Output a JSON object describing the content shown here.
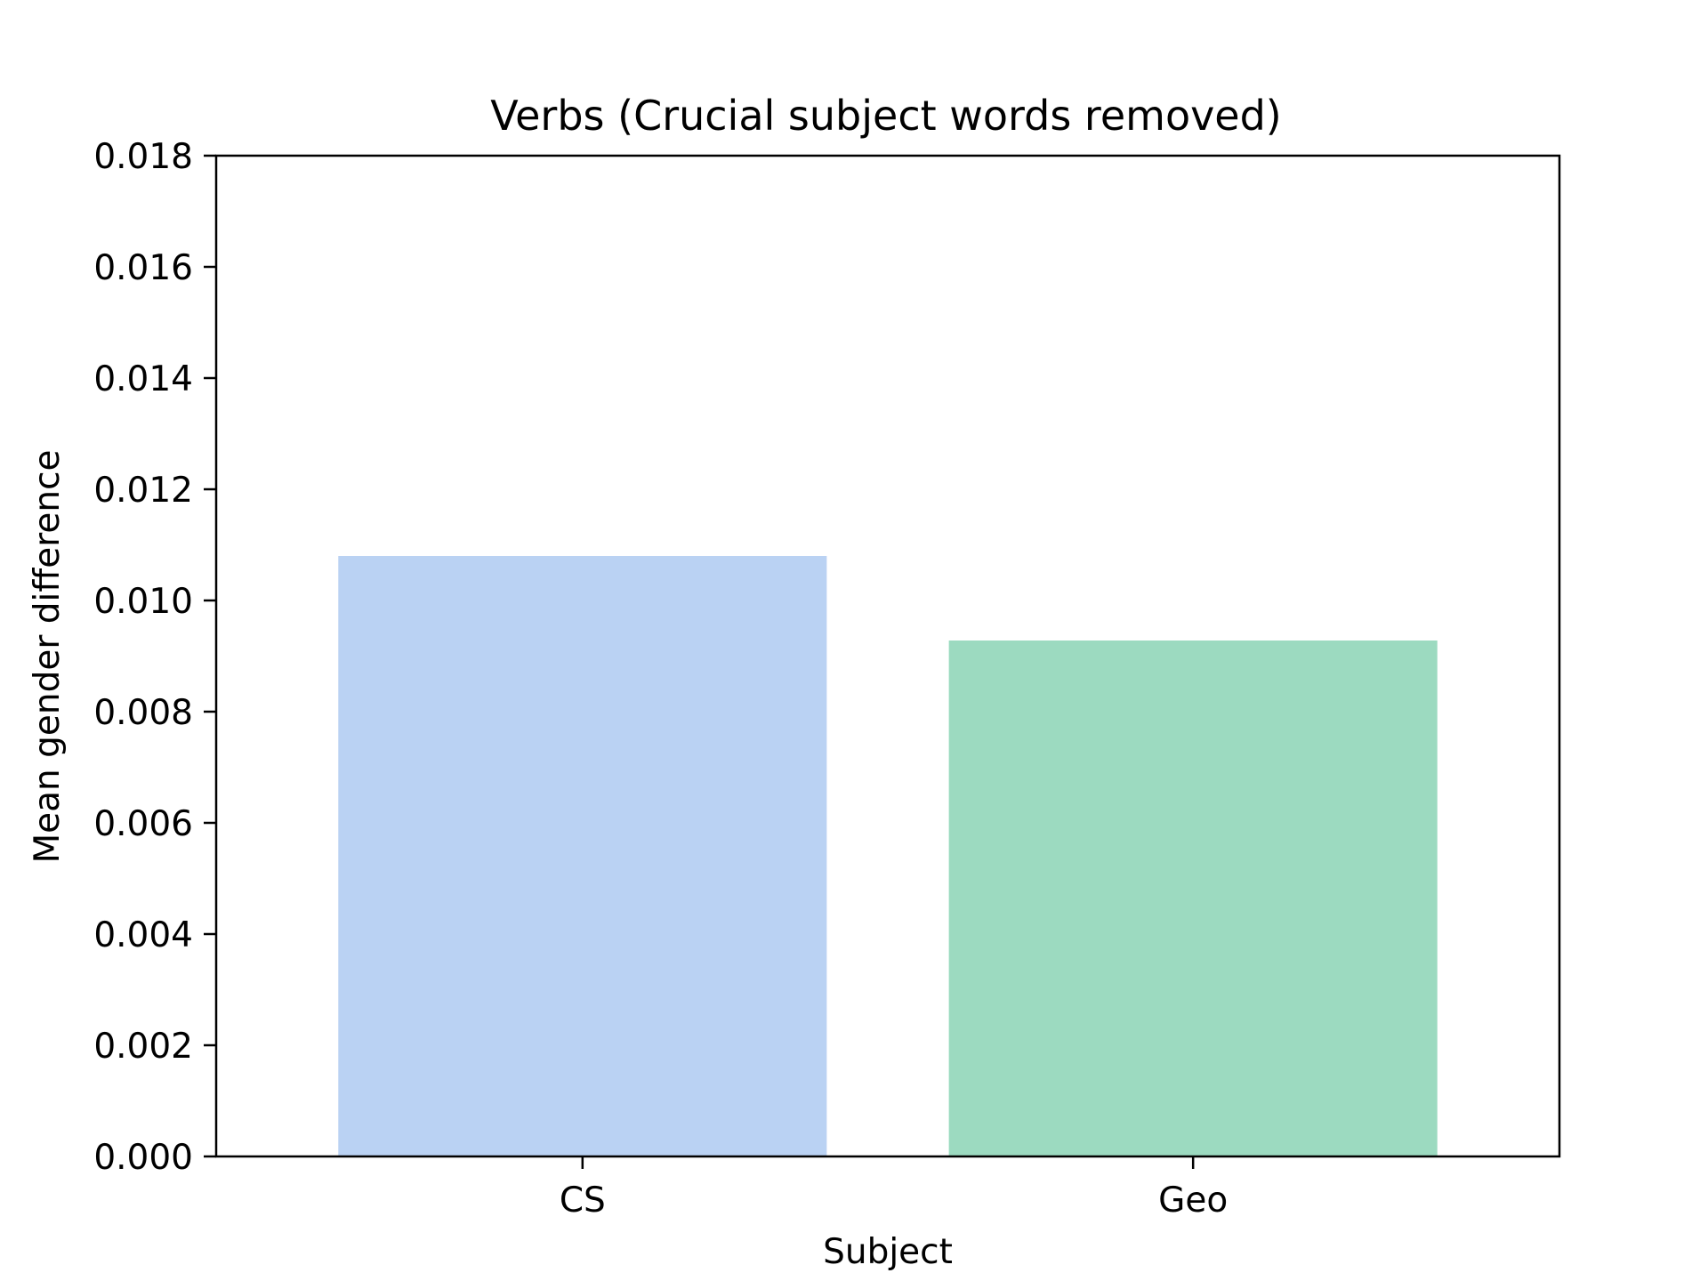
{
  "chart_data": {
    "type": "bar",
    "title": "Verbs (Crucial subject words removed)",
    "xlabel": "Subject",
    "ylabel": "Mean gender difference",
    "categories": [
      "CS",
      "Geo"
    ],
    "values": [
      0.0108,
      0.00928
    ],
    "colors": [
      "#bad2f3",
      "#9cdac0"
    ],
    "ylim": [
      0,
      0.018
    ],
    "yticks": [
      "0.000",
      "0.002",
      "0.004",
      "0.006",
      "0.008",
      "0.010",
      "0.012",
      "0.014",
      "0.016",
      "0.018"
    ],
    "grid": false,
    "legend": "none"
  }
}
